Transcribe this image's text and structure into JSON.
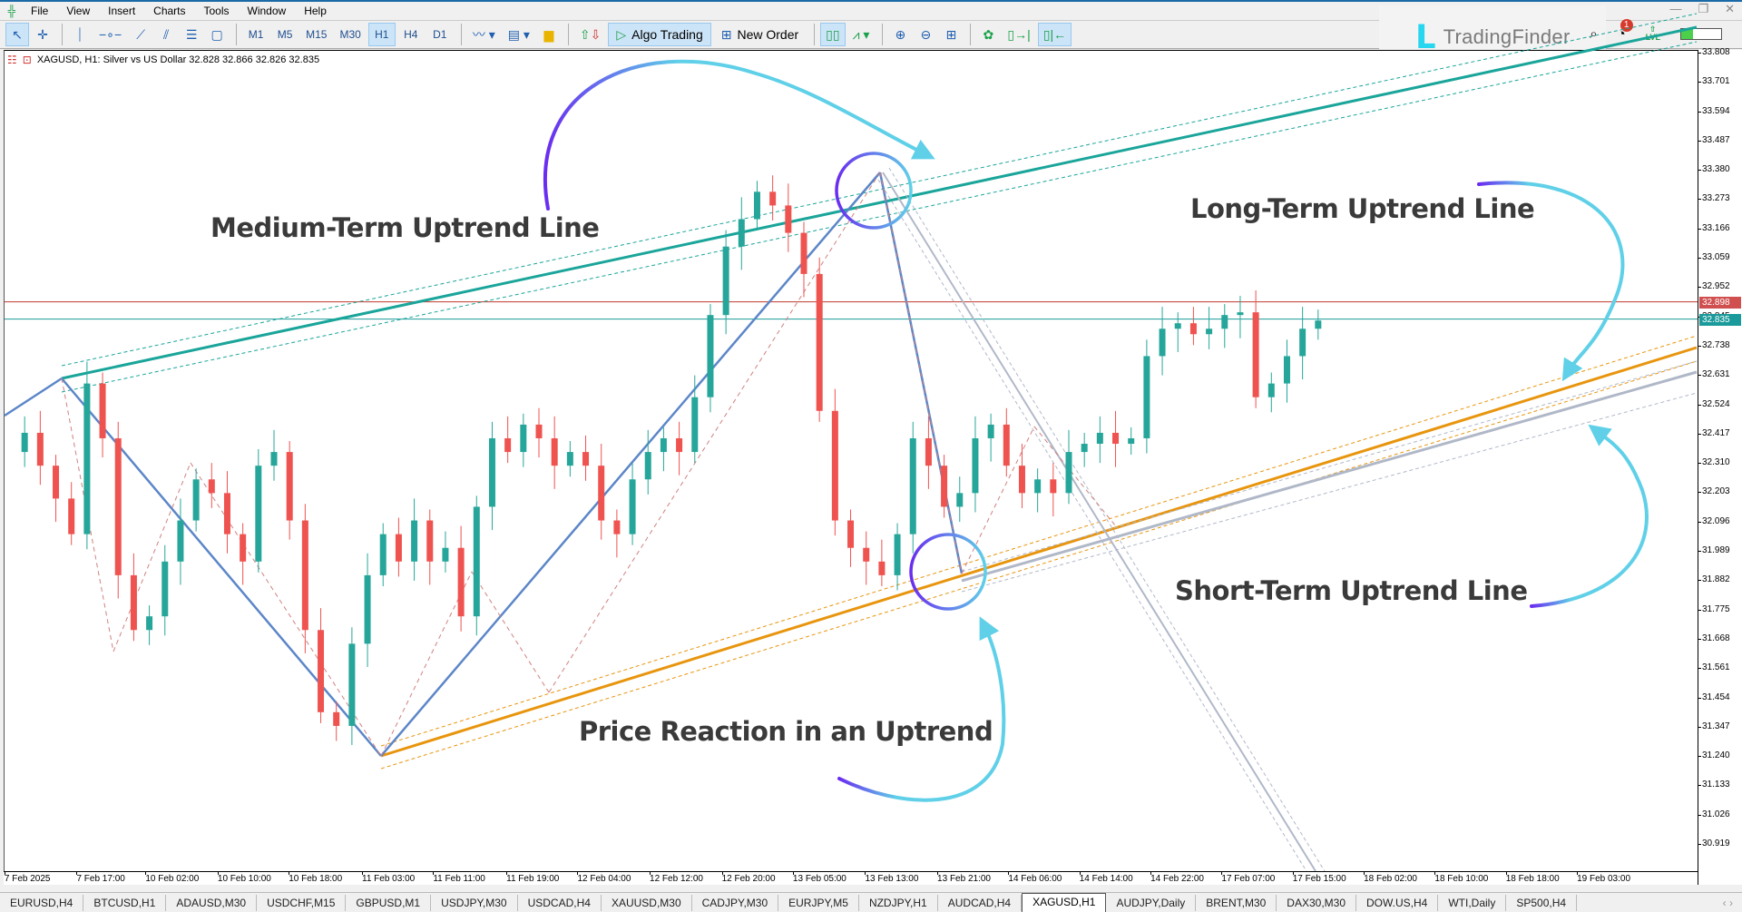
{
  "menubar": {
    "items": [
      "File",
      "View",
      "Insert",
      "Charts",
      "Tools",
      "Window",
      "Help"
    ]
  },
  "toolbar": {
    "timeframes": [
      "M1",
      "M5",
      "M15",
      "M30",
      "H1",
      "H4",
      "D1"
    ],
    "active_timeframe": "H1",
    "algo_trading_label": "Algo Trading",
    "new_order_label": "New Order"
  },
  "branding": {
    "logo_text": "TradingFinder",
    "notification_count": "1",
    "lvl_label": "LVL"
  },
  "chart": {
    "header": "XAGUSD, H1:  Silver vs US Dollar  32.828 32.866 32.826 32.835",
    "symbol": "XAGUSD",
    "timeframe": "H1",
    "description": "Silver vs US Dollar",
    "ohlc": {
      "open": "32.828",
      "high": "32.866",
      "low": "32.826",
      "close": "32.835"
    },
    "colors": {
      "bull": "#26a69a",
      "bear": "#ef5350",
      "medium_trend": "#1aa59a",
      "short_trend": "#e8950e",
      "long_trend": "#b0b8c8",
      "zigzag": "#5b86c8",
      "ask_line": "#c0392b",
      "bid_line": "#1a9a9a"
    }
  },
  "price_axis": {
    "labels": [
      "33.808",
      "33.701",
      "33.594",
      "33.487",
      "33.380",
      "33.273",
      "33.166",
      "33.059",
      "32.952",
      "32.845",
      "32.738",
      "32.631",
      "32.524",
      "32.417",
      "32.310",
      "32.203",
      "32.096",
      "31.989",
      "31.882",
      "31.775",
      "31.668",
      "31.561",
      "31.454",
      "31.347",
      "31.240",
      "31.133",
      "31.026",
      "30.919"
    ],
    "ask_tag": "32.898",
    "bid_tag": "32.835"
  },
  "time_axis": {
    "labels": [
      "7 Feb 2025",
      "7 Feb 17:00",
      "10 Feb 02:00",
      "10 Feb 10:00",
      "10 Feb 18:00",
      "11 Feb 03:00",
      "11 Feb 11:00",
      "11 Feb 19:00",
      "12 Feb 04:00",
      "12 Feb 12:00",
      "12 Feb 20:00",
      "13 Feb 05:00",
      "13 Feb 13:00",
      "13 Feb 21:00",
      "14 Feb 06:00",
      "14 Feb 14:00",
      "14 Feb 22:00",
      "17 Feb 07:00",
      "17 Feb 15:00",
      "18 Feb 02:00",
      "18 Feb 10:00",
      "18 Feb 18:00",
      "19 Feb 03:00"
    ]
  },
  "annotations": {
    "medium": "Medium-Term Uptrend Line",
    "long": "Long-Term Uptrend Line",
    "short": "Short-Term Uptrend Line",
    "reaction": "Price Reaction in an Uptrend"
  },
  "tabs": {
    "items": [
      "EURUSD,H4",
      "BTCUSD,H1",
      "ADAUSD,M30",
      "USDCHF,M15",
      "GBPUSD,M1",
      "USDJPY,M30",
      "USDCAD,H4",
      "XAUUSD,M30",
      "CADJPY,M30",
      "EURJPY,M5",
      "NZDJPY,H1",
      "AUDCAD,H4",
      "XAGUSD,H1",
      "AUDJPY,Daily",
      "BRENT,M30",
      "DAX30,M30",
      "DOW.US,H4",
      "WTI,Daily",
      "SP500,H4"
    ],
    "active": "XAGUSD,H1"
  },
  "chart_data": {
    "type": "candlestick",
    "title": "XAGUSD, H1: Silver vs US Dollar",
    "ylim": [
      30.919,
      33.808
    ],
    "candles": [
      [
        32.3,
        32.38,
        32.18,
        32.25
      ],
      [
        32.32,
        32.4,
        32.28,
        32.38
      ],
      [
        32.38,
        32.45,
        32.3,
        32.36
      ],
      [
        32.35,
        32.37,
        32.2,
        32.22
      ],
      [
        32.22,
        32.3,
        32.16,
        32.27
      ],
      [
        32.26,
        32.28,
        32.04,
        32.1
      ],
      [
        32.1,
        32.32,
        31.85,
        32.22
      ],
      [
        32.22,
        32.52,
        32.1,
        32.5
      ],
      [
        32.45,
        32.66,
        32.3,
        32.54
      ],
      [
        32.55,
        32.47,
        32.05,
        32.0
      ],
      [
        32.0,
        32.08,
        31.9,
        31.96
      ],
      [
        31.96,
        32.05,
        31.75,
        31.8
      ],
      [
        31.8,
        31.85,
        31.7,
        31.73
      ],
      [
        31.73,
        31.8,
        31.63,
        31.78
      ],
      [
        31.78,
        31.8,
        31.7,
        31.72
      ],
      [
        31.72,
        31.76,
        31.64,
        31.68
      ],
      [
        31.68,
        31.86,
        31.58,
        31.84
      ],
      [
        31.84,
        32.08,
        31.8,
        32.06
      ],
      [
        32.06,
        32.14,
        31.9,
        32.05
      ],
      [
        32.05,
        32.12,
        31.95,
        32.1
      ],
      [
        32.1,
        32.22,
        32.05,
        32.18
      ],
      [
        32.18,
        32.24,
        32.1,
        32.22
      ],
      [
        32.22,
        32.25,
        32.08,
        32.14
      ],
      [
        32.14,
        32.2,
        32.06,
        32.18
      ],
      [
        32.18,
        32.3,
        32.12,
        32.26
      ],
      [
        32.26,
        32.3,
        32.16,
        32.34
      ],
      [
        32.34,
        32.4,
        32.28,
        32.36
      ],
      [
        32.36,
        32.38,
        32.2,
        32.22
      ],
      [
        32.3,
        32.32,
        32.22,
        32.26
      ],
      [
        32.26,
        32.28,
        31.96,
        32.0
      ],
      [
        32.0,
        32.04,
        31.84,
        31.86
      ]
    ]
  }
}
